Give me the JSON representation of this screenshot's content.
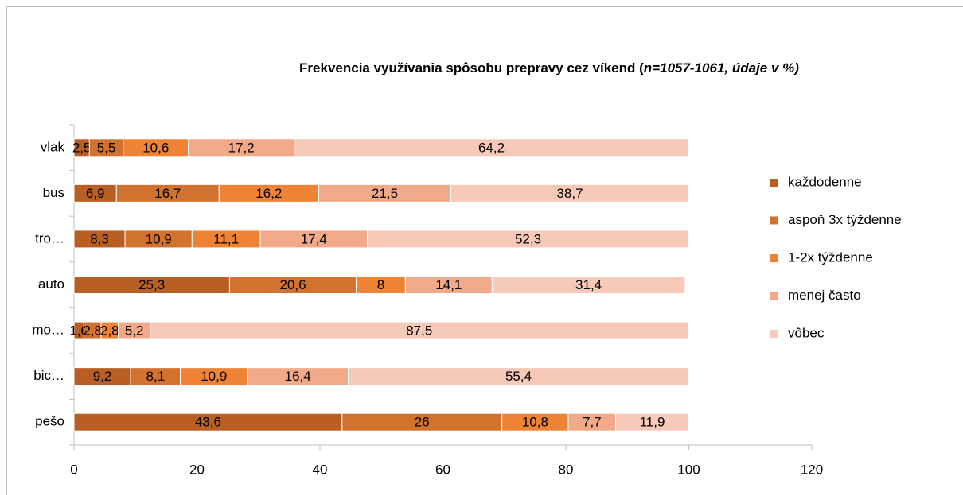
{
  "chart_data": {
    "type": "stacked-barh",
    "title": "Frekvencia využívania spôsobu prepravy cez víkend (",
    "title_italic": "n=1057-1061, údaje v %)",
    "categories": [
      "vlak",
      "bus",
      "tro…",
      "auto",
      "mo…",
      "bic…",
      "pešo"
    ],
    "series": [
      {
        "name": "každodenne",
        "color": "#b95f24",
        "values": [
          2.5,
          6.9,
          8.3,
          25.3,
          1.6,
          9.2,
          43.6
        ],
        "value_labels": [
          "2,5",
          "6,9",
          "8,3",
          "25,3",
          "1,6",
          "9,2",
          "43,6"
        ]
      },
      {
        "name": "aspoň 3x týždenne",
        "color": "#d1722f",
        "values": [
          5.5,
          16.7,
          10.9,
          20.6,
          2.8,
          8.1,
          26
        ],
        "value_labels": [
          "5,5",
          "16,7",
          "10,9",
          "20,6",
          "2,8",
          "8,1",
          "26"
        ]
      },
      {
        "name": "1-2x týždenne",
        "color": "#ee8235",
        "values": [
          10.6,
          16.2,
          11.1,
          8,
          2.8,
          10.9,
          10.8
        ],
        "value_labels": [
          "10,6",
          "16,2",
          "11,1",
          "8",
          "2,8",
          "10,9",
          "10,8"
        ]
      },
      {
        "name": "menej často",
        "color": "#f2a98a",
        "values": [
          17.2,
          21.5,
          17.4,
          14.1,
          5.2,
          16.4,
          7.7
        ],
        "value_labels": [
          "17,2",
          "21,5",
          "17,4",
          "14,1",
          "5,2",
          "16,4",
          "7,7"
        ]
      },
      {
        "name": "vôbec",
        "color": "#f7c9b9",
        "values": [
          64.2,
          38.7,
          52.3,
          31.4,
          87.5,
          55.4,
          11.9
        ],
        "value_labels": [
          "64,2",
          "38,7",
          "52,3",
          "31,4",
          "87,5",
          "55,4",
          "11,9"
        ]
      }
    ],
    "xlim": [
      0,
      120
    ],
    "xticks": [
      0,
      20,
      40,
      60,
      80,
      100,
      120
    ],
    "legend": "right"
  }
}
